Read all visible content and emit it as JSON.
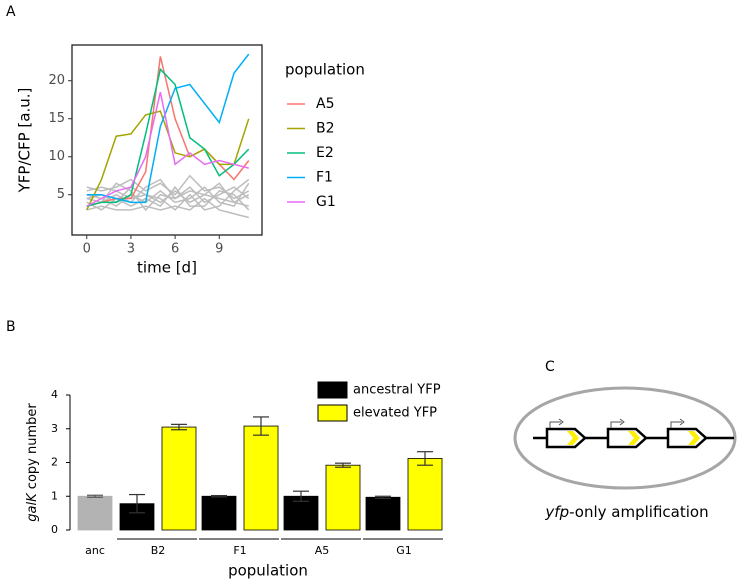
{
  "panel_labels": [
    "A",
    "B",
    "C"
  ],
  "chart_data": [
    {
      "type": "line",
      "xlabel": "time [d]",
      "ylabel": "YFP/CFP  [a.u.]",
      "legend_title": "population",
      "x": [
        0,
        1,
        2,
        3,
        4,
        5,
        6,
        7,
        8,
        9,
        10,
        11
      ],
      "xlim": [
        -1,
        11.9
      ],
      "ylim": [
        -0.3,
        24.7
      ],
      "xticks": [
        0,
        3,
        6,
        9
      ],
      "yticks": [
        5,
        10,
        15,
        20
      ],
      "grid": false,
      "background_color": "#bdbdbd",
      "background_series": [
        [
          4.5,
          5,
          4,
          6,
          5,
          4,
          5.5,
          4,
          5,
          4.5,
          4,
          5
        ],
        [
          3.5,
          4,
          5,
          4,
          6,
          7,
          4.5,
          6,
          4,
          5,
          6,
          4.5
        ],
        [
          5,
          4.5,
          3.5,
          5,
          4,
          5.5,
          4,
          4.5,
          6,
          4,
          3.5,
          6.5
        ],
        [
          4,
          3,
          4.5,
          3.5,
          4.5,
          3.5,
          6,
          3.5,
          3.5,
          5.5,
          5,
          3
        ],
        [
          6,
          5.5,
          6,
          7,
          5.5,
          6.5,
          5,
          7.5,
          5.5,
          6,
          4.5,
          5.5
        ],
        [
          3,
          3.5,
          3,
          3,
          3.5,
          3,
          3.5,
          3,
          4.5,
          3,
          2.5,
          2
        ],
        [
          5.5,
          6,
          5.5,
          4.5,
          5,
          4.5,
          3,
          5,
          3,
          3.5,
          5.5,
          7
        ],
        [
          4.5,
          4,
          6.5,
          5.5,
          3,
          5,
          4.5,
          5.5,
          5,
          6.5,
          4,
          3.5
        ]
      ],
      "series": [
        {
          "name": "A5",
          "color": "#F8766D",
          "values": [
            3.5,
            4,
            4.5,
            4.5,
            8,
            23.2,
            15,
            10,
            11,
            9,
            7,
            9.5
          ]
        },
        {
          "name": "B2",
          "color": "#A3A500",
          "values": [
            3,
            7,
            12.7,
            13,
            15.5,
            16,
            10.5,
            10,
            11,
            9,
            9,
            15
          ]
        },
        {
          "name": "E2",
          "color": "#00BF7D",
          "values": [
            3.5,
            4,
            4,
            5,
            13,
            21.5,
            19.5,
            12.5,
            11,
            7.5,
            9,
            11
          ]
        },
        {
          "name": "F1",
          "color": "#00B0F6",
          "values": [
            5,
            5,
            4.5,
            4,
            4,
            14,
            19,
            19.5,
            17,
            14.5,
            21,
            23.5
          ]
        },
        {
          "name": "G1",
          "color": "#E76BF3",
          "values": [
            3.5,
            4.5,
            5.5,
            6,
            10,
            18.5,
            9,
            10.5,
            9,
            9.5,
            9,
            8.5
          ]
        }
      ]
    },
    {
      "type": "bar",
      "xlabel": "population",
      "ylabel_italic": "galK",
      "ylabel": "copy number",
      "categories": [
        "anc",
        "B2",
        "F1",
        "A5",
        "G1"
      ],
      "ylim": [
        0,
        4
      ],
      "yticks": [
        0,
        1,
        2,
        3,
        4
      ],
      "series": [
        {
          "name": "ancestral YFP",
          "color": "#000000",
          "colors": [
            "#b3b3b3",
            "#000000",
            "#000000",
            "#000000",
            "#000000"
          ],
          "values": [
            1.0,
            0.78,
            1.0,
            1.0,
            0.97
          ],
          "errors": [
            0.03,
            0.27,
            0.02,
            0.15,
            0.03
          ]
        },
        {
          "name": "elevated YFP",
          "color": "#ffff00",
          "values": [
            null,
            3.05,
            3.08,
            1.92,
            2.12
          ],
          "errors": [
            null,
            0.08,
            0.27,
            0.06,
            0.2
          ]
        }
      ]
    }
  ],
  "diagram": {
    "caption_italic": "yfp",
    "caption": "-only amplification"
  }
}
